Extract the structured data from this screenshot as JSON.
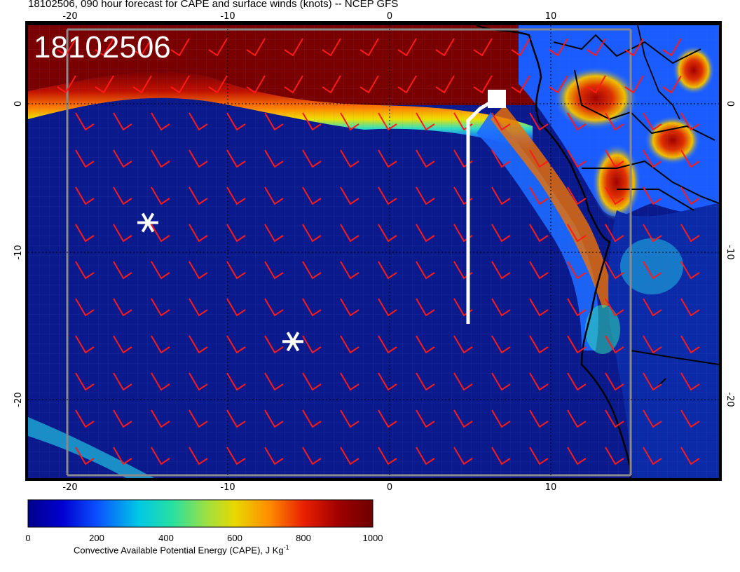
{
  "title": "18102506, 090 hour forecast for CAPE and surface winds (knots) -- NCEP GFS",
  "stamp": "18102506",
  "colors": {
    "ocean_low": "#0a1a8c",
    "cape_high": "#7a0000",
    "barb": "#ff1a1a",
    "coast": "#000000",
    "marker": "#ffffff"
  },
  "map": {
    "lon_labels_bottom": [
      "-20",
      "-10",
      "0",
      "10"
    ],
    "lon_labels_top": [
      "-20",
      "-10",
      "0",
      "10"
    ],
    "lat_labels_left": [
      "0",
      "-10",
      "-20"
    ],
    "lat_labels_right": [
      "0",
      "-10",
      "-20"
    ],
    "markers": [
      {
        "name": "asterisk-marker-west",
        "lon": -15,
        "lat": -8
      },
      {
        "name": "asterisk-marker-south",
        "lon": -6,
        "lat": -16
      }
    ],
    "flight_track_icon": "white-track-line",
    "end_marker_icon": "white-square"
  },
  "colorbar": {
    "ticks": [
      "0",
      "200",
      "400",
      "600",
      "800",
      "1000"
    ],
    "label": "Convective Available Potential Energy (CAPE), J Kg",
    "label_sup": "-1",
    "range": [
      0,
      1000
    ],
    "colors": [
      "#00008c",
      "#0000d0",
      "#0a50ff",
      "#00c8e6",
      "#28e0a0",
      "#a0e040",
      "#e8d800",
      "#ff8c00",
      "#e82000",
      "#a00000",
      "#6e0000"
    ]
  }
}
